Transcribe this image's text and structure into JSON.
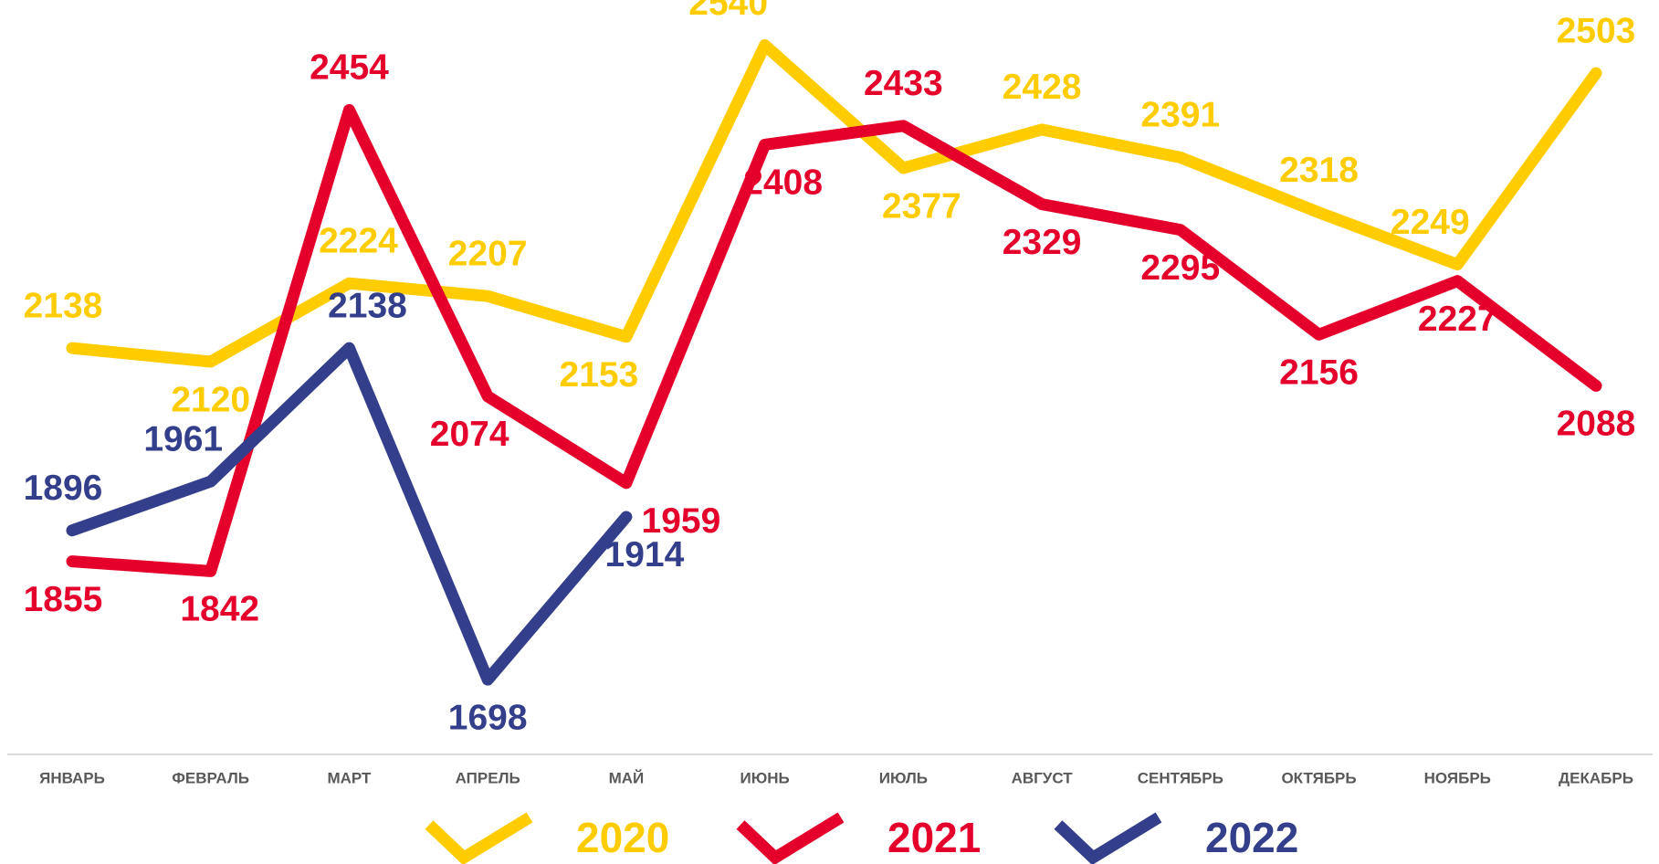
{
  "chart_data": {
    "type": "line",
    "categories": [
      "ЯНВАРЬ",
      "ФЕВРАЛЬ",
      "МАРТ",
      "АПРЕЛЬ",
      "МАЙ",
      "ИЮНЬ",
      "ИЮЛЬ",
      "АВГУСТ",
      "СЕНТЯБРЬ",
      "ОКТЯБРЬ",
      "НОЯБРЬ",
      "ДЕКАБРЬ"
    ],
    "series": [
      {
        "name": "2020",
        "color": "#FFCC00",
        "values": [
          2138,
          2120,
          2224,
          2207,
          2153,
          2540,
          2377,
          2428,
          2391,
          2318,
          2249,
          2503
        ]
      },
      {
        "name": "2021",
        "color": "#E4002B",
        "values": [
          1855,
          1842,
          2454,
          2074,
          1959,
          2408,
          2433,
          2329,
          2295,
          2156,
          2227,
          2088
        ]
      },
      {
        "name": "2022",
        "color": "#343F8C",
        "values": [
          1896,
          1961,
          2138,
          1698,
          1914,
          null,
          null,
          null,
          null,
          null,
          null,
          null
        ]
      }
    ],
    "ylim": [
      1600,
      2600
    ]
  }
}
